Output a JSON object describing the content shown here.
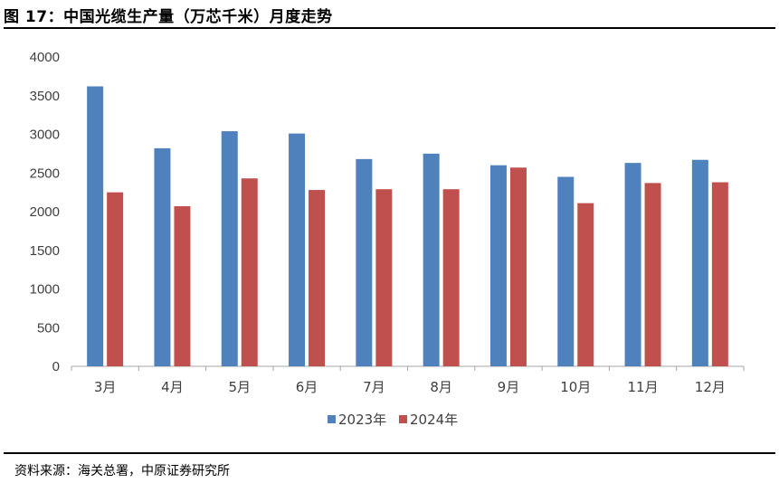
{
  "figure_title": "图 17：中国光缆生产量（万芯千米）月度走势",
  "source": "资料来源：海关总署，中原证券研究所",
  "colors": {
    "series_2023": "#4F81BD",
    "series_2024": "#C0504D",
    "axis": "#A6A6A6",
    "text": "#404040"
  },
  "chart_data": {
    "type": "bar",
    "title": "",
    "xlabel": "",
    "ylabel": "",
    "ylim": [
      0,
      4000
    ],
    "yticks": [
      "0",
      "500",
      "1000",
      "1500",
      "2000",
      "2500",
      "3000",
      "3500",
      "4000"
    ],
    "grid": false,
    "legend_position": "bottom",
    "categories": [
      "3月",
      "4月",
      "5月",
      "6月",
      "7月",
      "8月",
      "9月",
      "10月",
      "11月",
      "12月"
    ],
    "series": [
      {
        "name": "2023年",
        "values": [
          3620,
          2820,
          3040,
          3010,
          2680,
          2750,
          2600,
          2450,
          2630,
          2670
        ]
      },
      {
        "name": "2024年",
        "values": [
          2250,
          2070,
          2430,
          2280,
          2290,
          2290,
          2570,
          2110,
          2370,
          2380
        ]
      }
    ]
  }
}
